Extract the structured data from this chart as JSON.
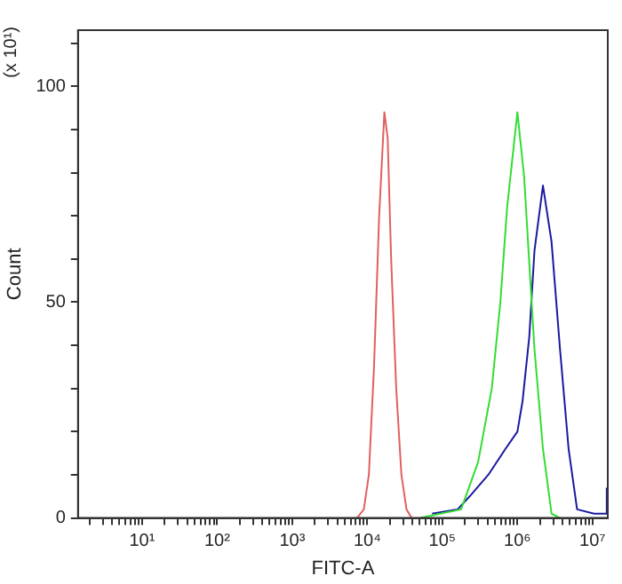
{
  "chart_data": {
    "type": "line",
    "xlabel": "FITC-A",
    "ylabel": "Count",
    "annotations": [
      "(x 10¹)"
    ],
    "log": "x",
    "grid": false,
    "legend": false,
    "xlim": [
      1.4,
      16000000
    ],
    "xticks": [
      {
        "value": 2,
        "label": null
      },
      {
        "value": 3,
        "label": null
      },
      {
        "value": 4,
        "label": null
      },
      {
        "value": 5,
        "label": null
      },
      {
        "value": 6,
        "label": null
      },
      {
        "value": 7,
        "label": null
      },
      {
        "value": 8,
        "label": null
      },
      {
        "value": 9,
        "label": null
      },
      {
        "value": 10,
        "label": "10¹"
      },
      {
        "value": 20,
        "label": null
      },
      {
        "value": 30,
        "label": null
      },
      {
        "value": 40,
        "label": null
      },
      {
        "value": 50,
        "label": null
      },
      {
        "value": 60,
        "label": null
      },
      {
        "value": 70,
        "label": null
      },
      {
        "value": 80,
        "label": null
      },
      {
        "value": 90,
        "label": null
      },
      {
        "value": 100,
        "label": "10²"
      },
      {
        "value": 200,
        "label": null
      },
      {
        "value": 300,
        "label": null
      },
      {
        "value": 400,
        "label": null
      },
      {
        "value": 500,
        "label": null
      },
      {
        "value": 600,
        "label": null
      },
      {
        "value": 700,
        "label": null
      },
      {
        "value": 800,
        "label": null
      },
      {
        "value": 900,
        "label": null
      },
      {
        "value": 1000,
        "label": "10³"
      },
      {
        "value": 2000,
        "label": null
      },
      {
        "value": 3000,
        "label": null
      },
      {
        "value": 4000,
        "label": null
      },
      {
        "value": 5000,
        "label": null
      },
      {
        "value": 6000,
        "label": null
      },
      {
        "value": 7000,
        "label": null
      },
      {
        "value": 8000,
        "label": null
      },
      {
        "value": 9000,
        "label": null
      },
      {
        "value": 10000,
        "label": "10⁴"
      },
      {
        "value": 20000,
        "label": null
      },
      {
        "value": 30000,
        "label": null
      },
      {
        "value": 40000,
        "label": null
      },
      {
        "value": 50000,
        "label": null
      },
      {
        "value": 60000,
        "label": null
      },
      {
        "value": 70000,
        "label": null
      },
      {
        "value": 80000,
        "label": null
      },
      {
        "value": 90000,
        "label": null
      },
      {
        "value": 100000,
        "label": "10⁵"
      },
      {
        "value": 200000,
        "label": null
      },
      {
        "value": 300000,
        "label": null
      },
      {
        "value": 400000,
        "label": null
      },
      {
        "value": 500000,
        "label": null
      },
      {
        "value": 600000,
        "label": null
      },
      {
        "value": 700000,
        "label": null
      },
      {
        "value": 800000,
        "label": null
      },
      {
        "value": 900000,
        "label": null
      },
      {
        "value": 1000000,
        "label": "10⁶"
      },
      {
        "value": 2000000,
        "label": null
      },
      {
        "value": 3000000,
        "label": null
      },
      {
        "value": 4000000,
        "label": null
      },
      {
        "value": 5000000,
        "label": null
      },
      {
        "value": 6000000,
        "label": null
      },
      {
        "value": 7000000,
        "label": null
      },
      {
        "value": 8000000,
        "label": null
      },
      {
        "value": 9000000,
        "label": null
      },
      {
        "value": 10000000,
        "label": "10⁷"
      }
    ],
    "ylim": [
      0,
      113
    ],
    "yticks": [
      0,
      {
        "value": 10,
        "label": null
      },
      {
        "value": 20,
        "label": null
      },
      {
        "value": 30,
        "label": null
      },
      {
        "value": 40,
        "label": null
      },
      50,
      {
        "value": 60,
        "label": null
      },
      {
        "value": 70,
        "label": null
      },
      {
        "value": 80,
        "label": null
      },
      {
        "value": 90,
        "label": null
      },
      100,
      {
        "value": 110,
        "label": null
      }
    ],
    "series": [
      {
        "color": "#e06060",
        "x": [
          7300,
          9000,
          10500,
          12300,
          14400,
          16900,
          18700,
          20800,
          24300,
          28500,
          33300,
          39000
        ],
        "values": [
          0,
          2,
          10,
          35,
          70,
          94,
          88,
          60,
          30,
          10,
          2,
          0
        ]
      },
      {
        "color": "#33dd33",
        "x": [
          50700,
          178000,
          300000,
          456000,
          593000,
          730000,
          1000000,
          1230000,
          1440000,
          1690000,
          2190000,
          2850000,
          3700000
        ],
        "values": [
          0,
          2,
          13,
          30,
          50,
          72,
          94,
          79,
          59,
          39,
          16,
          1,
          0
        ]
      },
      {
        "color": "#1a1aa0",
        "x": [
          73000,
          160000,
          231000,
          410000,
          693000,
          1000000,
          1170000,
          1440000,
          1690000,
          2190000,
          2850000,
          3700000,
          4810000,
          6240000,
          10500000,
          15200000,
          15500000
        ],
        "values": [
          1,
          2,
          5,
          10,
          16,
          20,
          27,
          42,
          62,
          77,
          64,
          39,
          16,
          2,
          1,
          1,
          7
        ]
      }
    ]
  }
}
